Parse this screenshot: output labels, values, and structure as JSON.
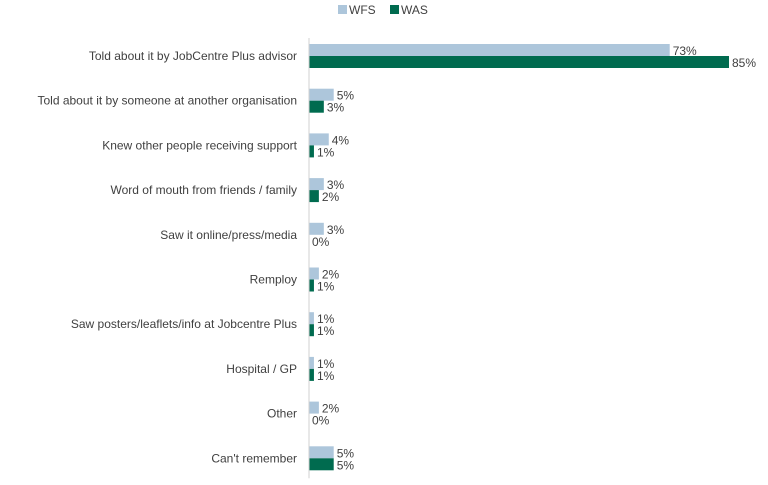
{
  "chart_data": {
    "type": "bar",
    "orientation": "horizontal",
    "categories": [
      "Told about it by JobCentre Plus advisor",
      "Told about it by someone at another organisation",
      "Knew other people receiving support",
      "Word of mouth from friends / family",
      "Saw it online/press/media",
      "Remploy",
      "Saw posters/leaflets/info at Jobcentre Plus",
      "Hospital / GP",
      "Other",
      "Can't remember"
    ],
    "series": [
      {
        "name": "WFS",
        "color": "#adc6db",
        "values": [
          73,
          5,
          4,
          3,
          3,
          2,
          1,
          1,
          2,
          5
        ],
        "labels": [
          "73%",
          "5%",
          "4%",
          "3%",
          "3%",
          "2%",
          "1%",
          "1%",
          "2%",
          "5%"
        ]
      },
      {
        "name": "WAS",
        "color": "#006b4f",
        "values": [
          85,
          3,
          1,
          2,
          0,
          1,
          1,
          1,
          0,
          5
        ],
        "labels": [
          "85%",
          "3%",
          "1%",
          "2%",
          "0%",
          "1%",
          "1%",
          "1%",
          "0%",
          "5%"
        ]
      }
    ],
    "xlim": [
      0,
      85
    ],
    "grid": false,
    "legend_position": "top"
  }
}
